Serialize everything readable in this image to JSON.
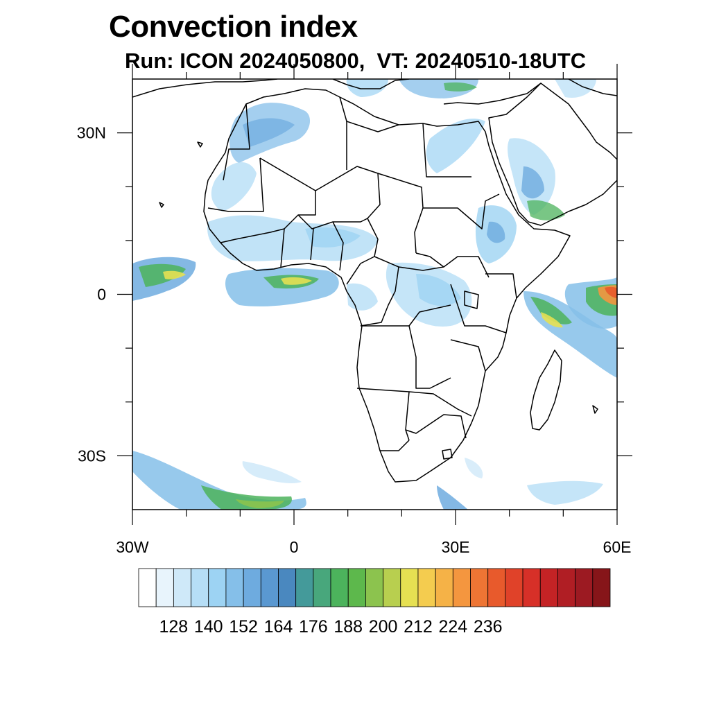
{
  "title": "Convection index",
  "subtitle": "Run: ICON 2024050800,  VT: 20240510-18UTC",
  "map": {
    "lon_range": [
      -30,
      60
    ],
    "lat_range": [
      -40,
      40
    ],
    "lon_ticks": [
      {
        "value": -30,
        "label": "30W"
      },
      {
        "value": 0,
        "label": "0"
      },
      {
        "value": 30,
        "label": "30E"
      },
      {
        "value": 60,
        "label": "60E"
      }
    ],
    "lat_ticks": [
      {
        "value": 30,
        "label": "30N"
      },
      {
        "value": 0,
        "label": "0"
      },
      {
        "value": -30,
        "label": "30S"
      }
    ]
  },
  "colorbar": {
    "colors": [
      "#ffffff",
      "#e8f4fc",
      "#cfe9f9",
      "#b6def6",
      "#9dd3f3",
      "#85bfe9",
      "#6eabdf",
      "#5a98d1",
      "#4a88bf",
      "#449a9a",
      "#48a77c",
      "#4cb35c",
      "#5db84c",
      "#8cc34e",
      "#b8cf4f",
      "#e6e052",
      "#f4cc4f",
      "#f5b247",
      "#f4963f",
      "#ee7534",
      "#e85a2c",
      "#e04229",
      "#d73028",
      "#c42325",
      "#b01e24",
      "#9c1a22",
      "#861519"
    ],
    "labels": [
      "128",
      "140",
      "152",
      "164",
      "176",
      "188",
      "200",
      "212",
      "224",
      "236"
    ]
  }
}
